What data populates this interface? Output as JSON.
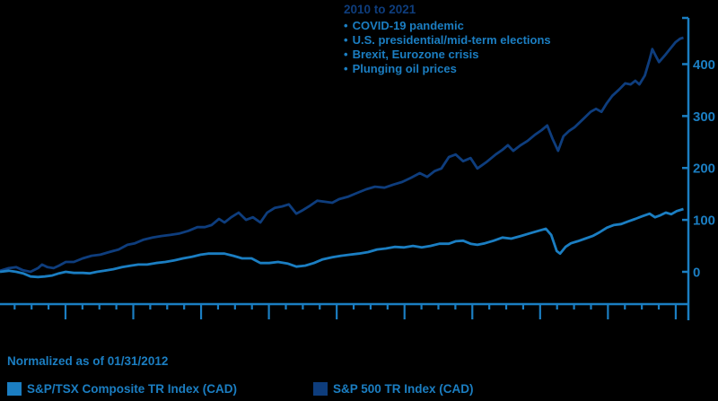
{
  "annotation": {
    "title": "2010 to 2021",
    "bullet_char": "•",
    "bullets": [
      "COVID-19 pandemic",
      "U.S. presidential/mid-term elections",
      "Brexit, Eurozone crisis",
      "Plunging oil prices"
    ]
  },
  "footer": {
    "note": "Normalized as of 01/31/2012",
    "legend": [
      {
        "label": "S&P/TSX Composite TR Index (CAD)",
        "color": "#1b7ec2"
      },
      {
        "label": "S&P 500 TR Index (CAD)",
        "color": "#0e3d7d"
      }
    ]
  },
  "colors": {
    "background": "#000000",
    "axis": "#1b7ec2",
    "tick_label": "#1b7ec2",
    "annotation_title": "#0e3d7d",
    "annotation_bullets": "#1b7ec2",
    "series_sp500": "#0e3d7d",
    "series_tsx": "#1b7ec2"
  },
  "chart_data": {
    "type": "line",
    "title": "2010 to 2021",
    "subtitle_note": "Normalized as of 01/31/2012",
    "x_axis": {
      "unit": "year",
      "range": [
        2012.0,
        2022.2
      ],
      "major_ticks": "yearly (unlabeled)",
      "minor_ticks": "quarterly (unlabeled)",
      "labels_shown": false
    },
    "y_axis": {
      "position": "right",
      "ticks": [
        0,
        100,
        200,
        300,
        400
      ],
      "range": [
        -20,
        490
      ],
      "grid": false
    },
    "legend_position": "bottom-left",
    "series": [
      {
        "name": "S&P 500 TR Index (CAD)",
        "color": "#0e3d7d",
        "points": [
          [
            2012.03,
            2
          ],
          [
            2012.16,
            7
          ],
          [
            2012.27,
            9
          ],
          [
            2012.37,
            3
          ],
          [
            2012.48,
            0
          ],
          [
            2012.59,
            7
          ],
          [
            2012.65,
            14
          ],
          [
            2012.73,
            9
          ],
          [
            2012.82,
            7
          ],
          [
            2012.9,
            12
          ],
          [
            2013.0,
            19
          ],
          [
            2013.12,
            19
          ],
          [
            2013.25,
            26
          ],
          [
            2013.38,
            31
          ],
          [
            2013.51,
            33
          ],
          [
            2013.64,
            38
          ],
          [
            2013.78,
            43
          ],
          [
            2013.91,
            52
          ],
          [
            2014.02,
            55
          ],
          [
            2014.15,
            62
          ],
          [
            2014.28,
            66
          ],
          [
            2014.41,
            69
          ],
          [
            2014.54,
            71
          ],
          [
            2014.68,
            74
          ],
          [
            2014.81,
            79
          ],
          [
            2014.94,
            86
          ],
          [
            2015.05,
            86
          ],
          [
            2015.15,
            90
          ],
          [
            2015.26,
            102
          ],
          [
            2015.34,
            95
          ],
          [
            2015.44,
            105
          ],
          [
            2015.55,
            114
          ],
          [
            2015.66,
            100
          ],
          [
            2015.76,
            105
          ],
          [
            2015.87,
            95
          ],
          [
            2015.97,
            114
          ],
          [
            2016.08,
            123
          ],
          [
            2016.19,
            126
          ],
          [
            2016.29,
            130
          ],
          [
            2016.4,
            112
          ],
          [
            2016.5,
            119
          ],
          [
            2016.61,
            128
          ],
          [
            2016.71,
            137
          ],
          [
            2016.82,
            135
          ],
          [
            2016.93,
            133
          ],
          [
            2017.03,
            140
          ],
          [
            2017.17,
            145
          ],
          [
            2017.3,
            152
          ],
          [
            2017.43,
            159
          ],
          [
            2017.56,
            164
          ],
          [
            2017.7,
            162
          ],
          [
            2017.83,
            168
          ],
          [
            2017.96,
            173
          ],
          [
            2018.09,
            181
          ],
          [
            2018.22,
            190
          ],
          [
            2018.33,
            183
          ],
          [
            2018.44,
            194
          ],
          [
            2018.54,
            199
          ],
          [
            2018.65,
            221
          ],
          [
            2018.75,
            226
          ],
          [
            2018.86,
            213
          ],
          [
            2018.97,
            219
          ],
          [
            2019.07,
            199
          ],
          [
            2019.2,
            211
          ],
          [
            2019.34,
            226
          ],
          [
            2019.44,
            235
          ],
          [
            2019.52,
            244
          ],
          [
            2019.6,
            233
          ],
          [
            2019.71,
            244
          ],
          [
            2019.81,
            252
          ],
          [
            2019.92,
            264
          ],
          [
            2020.02,
            273
          ],
          [
            2020.1,
            282
          ],
          [
            2020.18,
            256
          ],
          [
            2020.26,
            233
          ],
          [
            2020.34,
            261
          ],
          [
            2020.42,
            271
          ],
          [
            2020.5,
            278
          ],
          [
            2020.63,
            294
          ],
          [
            2020.74,
            308
          ],
          [
            2020.82,
            314
          ],
          [
            2020.9,
            308
          ],
          [
            2020.98,
            325
          ],
          [
            2021.06,
            339
          ],
          [
            2021.16,
            351
          ],
          [
            2021.25,
            363
          ],
          [
            2021.33,
            361
          ],
          [
            2021.4,
            368
          ],
          [
            2021.46,
            361
          ],
          [
            2021.54,
            378
          ],
          [
            2021.61,
            409
          ],
          [
            2021.65,
            429
          ],
          [
            2021.7,
            416
          ],
          [
            2021.75,
            404
          ],
          [
            2021.83,
            416
          ],
          [
            2021.91,
            429
          ],
          [
            2021.99,
            442
          ],
          [
            2022.06,
            449
          ],
          [
            2022.11,
            451
          ]
        ]
      },
      {
        "name": "S&P/TSX Composite TR Index (CAD)",
        "color": "#1b7ec2",
        "points": [
          [
            2012.03,
            0
          ],
          [
            2012.16,
            2
          ],
          [
            2012.27,
            0
          ],
          [
            2012.37,
            -3
          ],
          [
            2012.48,
            -9
          ],
          [
            2012.59,
            -10
          ],
          [
            2012.69,
            -9
          ],
          [
            2012.8,
            -7
          ],
          [
            2012.9,
            -3
          ],
          [
            2013.0,
            0
          ],
          [
            2013.12,
            -2
          ],
          [
            2013.25,
            -2
          ],
          [
            2013.35,
            -3
          ],
          [
            2013.46,
            0
          ],
          [
            2013.57,
            2
          ],
          [
            2013.7,
            5
          ],
          [
            2013.83,
            9
          ],
          [
            2013.96,
            12
          ],
          [
            2014.07,
            14
          ],
          [
            2014.2,
            14
          ],
          [
            2014.33,
            17
          ],
          [
            2014.47,
            19
          ],
          [
            2014.6,
            22
          ],
          [
            2014.73,
            26
          ],
          [
            2014.86,
            29
          ],
          [
            2014.99,
            33
          ],
          [
            2015.1,
            35
          ],
          [
            2015.21,
            35
          ],
          [
            2015.34,
            35
          ],
          [
            2015.47,
            31
          ],
          [
            2015.6,
            26
          ],
          [
            2015.74,
            26
          ],
          [
            2015.87,
            17
          ],
          [
            2016.0,
            17
          ],
          [
            2016.13,
            19
          ],
          [
            2016.27,
            16
          ],
          [
            2016.4,
            10
          ],
          [
            2016.53,
            12
          ],
          [
            2016.66,
            17
          ],
          [
            2016.79,
            24
          ],
          [
            2016.93,
            28
          ],
          [
            2017.06,
            31
          ],
          [
            2017.19,
            33
          ],
          [
            2017.32,
            35
          ],
          [
            2017.46,
            38
          ],
          [
            2017.59,
            43
          ],
          [
            2017.72,
            45
          ],
          [
            2017.85,
            48
          ],
          [
            2017.99,
            47
          ],
          [
            2018.12,
            50
          ],
          [
            2018.25,
            47
          ],
          [
            2018.38,
            50
          ],
          [
            2018.51,
            54
          ],
          [
            2018.65,
            54
          ],
          [
            2018.75,
            59
          ],
          [
            2018.86,
            60
          ],
          [
            2018.97,
            54
          ],
          [
            2019.07,
            52
          ],
          [
            2019.18,
            55
          ],
          [
            2019.31,
            60
          ],
          [
            2019.44,
            66
          ],
          [
            2019.57,
            64
          ],
          [
            2019.71,
            69
          ],
          [
            2019.84,
            74
          ],
          [
            2019.97,
            79
          ],
          [
            2020.08,
            83
          ],
          [
            2020.16,
            71
          ],
          [
            2020.24,
            40
          ],
          [
            2020.29,
            35
          ],
          [
            2020.37,
            48
          ],
          [
            2020.45,
            55
          ],
          [
            2020.55,
            59
          ],
          [
            2020.66,
            64
          ],
          [
            2020.77,
            69
          ],
          [
            2020.87,
            76
          ],
          [
            2020.98,
            85
          ],
          [
            2021.08,
            90
          ],
          [
            2021.19,
            92
          ],
          [
            2021.29,
            97
          ],
          [
            2021.4,
            102
          ],
          [
            2021.5,
            107
          ],
          [
            2021.61,
            112
          ],
          [
            2021.69,
            105
          ],
          [
            2021.77,
            109
          ],
          [
            2021.85,
            114
          ],
          [
            2021.93,
            111
          ],
          [
            2022.01,
            117
          ],
          [
            2022.11,
            121
          ]
        ]
      }
    ]
  }
}
